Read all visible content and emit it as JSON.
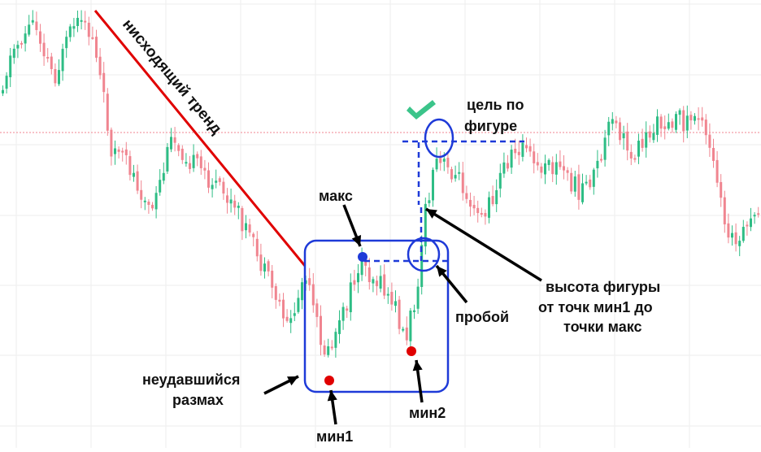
{
  "chart_data": {
    "type": "candlestick",
    "colors": {
      "bull": "#2ebd85",
      "bear": "#f08590",
      "grid": "#eeeeee",
      "resistance_line": "#f08590",
      "trend_line": "#e00000",
      "pattern_box": "#1e3ad8",
      "arrow": "#000000",
      "min_marker": "#e00000",
      "max_marker": "#1e3ad8",
      "check": "#3bc48a"
    },
    "annotations": {
      "trend": "нисходящий тренд",
      "max": "макс",
      "min1": "мин1",
      "min2": "мин2",
      "failed_swing_1": "неудавшийся",
      "failed_swing_2": "размах",
      "breakout": "пробой",
      "height_1": "высота фигуры",
      "height_2": "от точк мин1 до",
      "height_3": "точки макс",
      "target_1": "цель по",
      "target_2": "фигуре"
    },
    "candles": []
  }
}
